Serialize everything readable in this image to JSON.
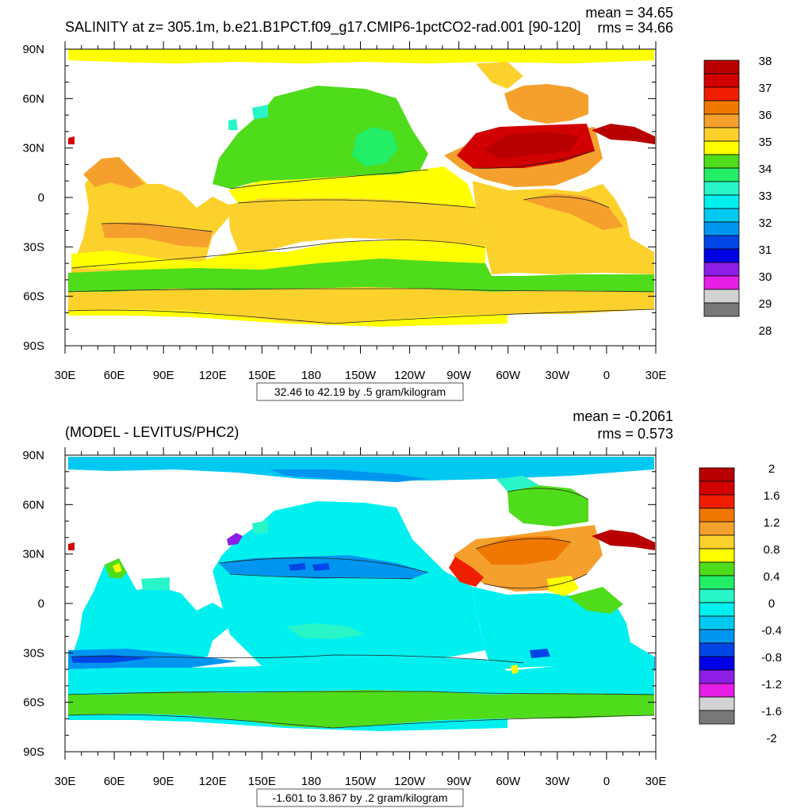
{
  "panels": [
    {
      "title": "SALINITY at z= 305.1m, b.e21.B1PCT.f09_g17.CMIP6-1pctCO2-rad.001 [90-120]",
      "mean_label": "mean = 34.65",
      "rms_label": "rms = 34.66",
      "info_label": "32.46 to 42.19 by .5 gram/kilogram",
      "lat_ticks": [
        "90N",
        "60N",
        "30N",
        "0",
        "30S",
        "60S",
        "90S"
      ],
      "lon_ticks": [
        "30E",
        "60E",
        "90E",
        "120E",
        "150E",
        "180",
        "150W",
        "120W",
        "90W",
        "60W",
        "30W",
        "0",
        "30E"
      ],
      "colorbar": {
        "labels": [
          "38",
          "37",
          "36",
          "35",
          "34",
          "33",
          "32",
          "31",
          "30",
          "29",
          "28"
        ],
        "colors": [
          "#b80000",
          "#d20000",
          "#f01e00",
          "#f07800",
          "#f5a02d",
          "#fcd12c",
          "#ffff00",
          "#4fdc1a",
          "#22ee66",
          "#28f5c8",
          "#00f0f0",
          "#00c8f0",
          "#0096f0",
          "#0046e6",
          "#0000e6",
          "#8c1ee6",
          "#e61ee6",
          "#d2d2d2",
          "#787878"
        ]
      }
    },
    {
      "title": "(MODEL - LEVITUS/PHC2)",
      "mean_label": "mean = -0.2061",
      "rms_label": "rms = 0.573",
      "info_label": "-1.601 to 3.867 by .2 gram/kilogram",
      "lat_ticks": [
        "90N",
        "60N",
        "30N",
        "0",
        "30S",
        "60S",
        "90S"
      ],
      "lon_ticks": [
        "30E",
        "60E",
        "90E",
        "120E",
        "150E",
        "180",
        "150W",
        "120W",
        "90W",
        "60W",
        "30W",
        "0",
        "30E"
      ],
      "colorbar": {
        "labels": [
          "2",
          "1.6",
          "1.2",
          "0.8",
          "0.4",
          "0",
          "-0.4",
          "-0.8",
          "-1.2",
          "-1.6",
          "-2"
        ],
        "colors": [
          "#b80000",
          "#d20000",
          "#f01e00",
          "#f07800",
          "#f5a02d",
          "#fcd12c",
          "#ffff00",
          "#4fdc1a",
          "#22ee66",
          "#28f5c8",
          "#00f0f0",
          "#00c8f0",
          "#0096f0",
          "#0046e6",
          "#0000e6",
          "#8c1ee6",
          "#e61ee6",
          "#d2d2d2",
          "#787878"
        ]
      }
    }
  ]
}
